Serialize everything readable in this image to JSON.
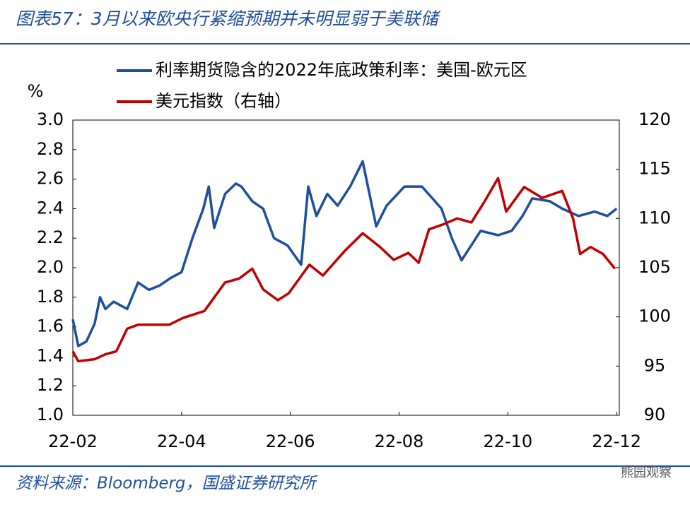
{
  "chart_data": {
    "type": "line",
    "title": "图表57：3月以来欧央行紧缩预期并未明显弱于美联储",
    "y_label": "%",
    "source": "资料来源：Bloomberg，国盛证券研究所",
    "watermark": "熊园观察",
    "xlim": [
      2,
      12.05
    ],
    "xticks": [
      {
        "value": 2,
        "label": "22-02"
      },
      {
        "value": 4,
        "label": "22-04"
      },
      {
        "value": 6,
        "label": "22-06"
      },
      {
        "value": 8,
        "label": "22-08"
      },
      {
        "value": 10,
        "label": "22-10"
      },
      {
        "value": 12,
        "label": "22-12"
      }
    ],
    "ylim": [
      1,
      3
    ],
    "yticks": [
      {
        "value": 1,
        "label": "1.0"
      },
      {
        "value": 1.2,
        "label": "1.2"
      },
      {
        "value": 1.4,
        "label": "1.4"
      },
      {
        "value": 1.6,
        "label": "1.6"
      },
      {
        "value": 1.8,
        "label": "1.8"
      },
      {
        "value": 2,
        "label": "2.0"
      },
      {
        "value": 2.2,
        "label": "2.2"
      },
      {
        "value": 2.4,
        "label": "2.4"
      },
      {
        "value": 2.6,
        "label": "2.6"
      },
      {
        "value": 2.8,
        "label": "2.8"
      },
      {
        "value": 3,
        "label": "3.0"
      }
    ],
    "y2lim": [
      90,
      120
    ],
    "y2ticks": [
      90,
      95,
      100,
      105,
      110,
      115,
      120
    ],
    "series": [
      {
        "name": "利率期货隐含的2022年底政策利率：美国-欧元区",
        "color": "#1f4e9c",
        "x": [
          2.0,
          2.1,
          2.25,
          2.4,
          2.5,
          2.6,
          2.75,
          3.0,
          3.2,
          3.4,
          3.6,
          3.8,
          4.0,
          4.2,
          4.4,
          4.5,
          4.6,
          4.8,
          5.0,
          5.1,
          5.3,
          5.5,
          5.7,
          5.95,
          6.2,
          6.33,
          6.48,
          6.68,
          6.87,
          7.1,
          7.33,
          7.58,
          7.77,
          8.1,
          8.42,
          8.78,
          8.97,
          9.15,
          9.5,
          9.82,
          10.07,
          10.27,
          10.45,
          10.77,
          11.0,
          11.3,
          11.6,
          11.83,
          12.0
        ],
        "values": [
          1.65,
          1.47,
          1.5,
          1.62,
          1.8,
          1.72,
          1.77,
          1.72,
          1.9,
          1.85,
          1.88,
          1.93,
          1.97,
          2.2,
          2.4,
          2.55,
          2.27,
          2.5,
          2.57,
          2.55,
          2.45,
          2.4,
          2.2,
          2.15,
          2.02,
          2.55,
          2.35,
          2.5,
          2.42,
          2.55,
          2.72,
          2.28,
          2.42,
          2.55,
          2.55,
          2.4,
          2.2,
          2.05,
          2.25,
          2.22,
          2.25,
          2.35,
          2.47,
          2.45,
          2.4,
          2.35,
          2.38,
          2.35,
          2.4
        ]
      },
      {
        "name": "美元指数（右轴）",
        "color": "#c00000",
        "axis": "y2",
        "x": [
          2.0,
          2.1,
          2.4,
          2.6,
          2.8,
          3.0,
          3.2,
          3.77,
          4.03,
          4.42,
          4.8,
          5.06,
          5.3,
          5.5,
          5.77,
          5.97,
          6.35,
          6.6,
          7.0,
          7.33,
          7.65,
          7.9,
          8.17,
          8.36,
          8.55,
          8.81,
          9.07,
          9.33,
          9.58,
          9.82,
          9.97,
          10.3,
          10.63,
          11.0,
          11.2,
          11.33,
          11.52,
          11.75,
          11.97
        ],
        "values": [
          96.5,
          95.5,
          95.7,
          96.2,
          96.5,
          98.8,
          99.2,
          99.2,
          99.9,
          100.6,
          103.5,
          103.9,
          104.9,
          102.8,
          101.7,
          102.4,
          105.3,
          104.2,
          106.7,
          108.5,
          107.1,
          105.8,
          106.5,
          105.5,
          108.9,
          109.4,
          110,
          109.6,
          111.8,
          114.1,
          110.7,
          113.2,
          112.1,
          112.8,
          110,
          106.4,
          107.1,
          106.4,
          104.9
        ]
      }
    ]
  }
}
